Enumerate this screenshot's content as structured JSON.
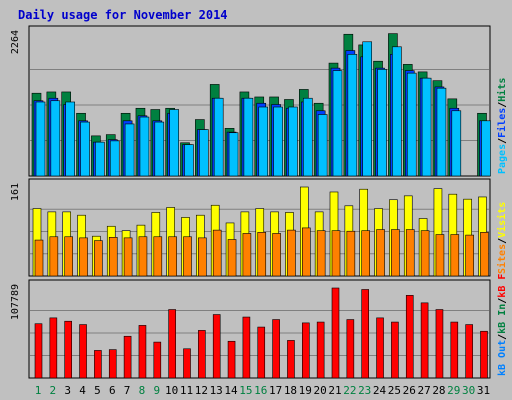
{
  "chart_data": {
    "type": "bar",
    "title": "Daily usage for November 2014",
    "x": [
      "1",
      "2",
      "3",
      "4",
      "5",
      "6",
      "7",
      "8",
      "9",
      "10",
      "11",
      "12",
      "13",
      "14",
      "15",
      "16",
      "17",
      "18",
      "19",
      "20",
      "21",
      "22",
      "23",
      "24",
      "25",
      "26",
      "27",
      "28",
      "29",
      "30",
      "31"
    ],
    "weekend_days": [
      "1",
      "2",
      "8",
      "9",
      "15",
      "16",
      "22",
      "23",
      "29",
      "30"
    ],
    "colors": {
      "background": "#c0c0c0",
      "title": "#0000cc",
      "hits": "#008040",
      "files": "#0040ff",
      "pages": "#00c0ff",
      "visits": "#ffff00",
      "sites": "#ff8000",
      "kb_in": "#008040",
      "kb_out": "#0080ff",
      "kb_f": "#ff0000",
      "weekday_label": "#000000",
      "weekend_label": "#008040"
    },
    "panels": [
      {
        "id": "hits-files-pages",
        "max_label": "2264",
        "max": 2264,
        "legend": [
          {
            "text": "Hits",
            "color": "#008040"
          },
          {
            "text": "/",
            "color": "#000000"
          },
          {
            "text": "Files",
            "color": "#0040ff"
          },
          {
            "text": "/",
            "color": "#000000"
          },
          {
            "text": "Pages",
            "color": "#00c0ff"
          }
        ],
        "series": [
          {
            "name": "Hits",
            "color": "#008040",
            "values": [
              1320,
              1340,
              1340,
              1000,
              640,
              660,
              1000,
              1080,
              1060,
              1080,
              530,
              900,
              1460,
              760,
              1340,
              1260,
              1260,
              1220,
              1380,
              1160,
              1800,
              2260,
              2090,
              1830,
              2270,
              1780,
              1660,
              1520,
              1230,
              0,
              1000
            ]
          },
          {
            "name": "Files",
            "color": "#0040ff",
            "values": [
              1200,
              1240,
              1140,
              880,
              540,
              580,
              880,
              960,
              880,
              1000,
              500,
              740,
              1240,
              700,
              1240,
              1160,
              1140,
              1080,
              1180,
              1040,
              1720,
              2000,
              1900,
              1720,
              1940,
              1680,
              1560,
              1420,
              1080,
              0,
              880
            ]
          },
          {
            "name": "Pages",
            "color": "#00c0ff",
            "values": [
              1180,
              1200,
              1180,
              860,
              540,
              560,
              830,
              940,
              860,
              1060,
              500,
              740,
              1240,
              690,
              1240,
              1100,
              1100,
              1100,
              1240,
              980,
              1680,
              1940,
              2140,
              1700,
              2060,
              1640,
              1560,
              1400,
              1040,
              0,
              880
            ]
          }
        ]
      },
      {
        "id": "visits-sites",
        "max_label": "161",
        "max": 161,
        "legend": [
          {
            "text": "Visits",
            "color": "#ffff00"
          },
          {
            "text": "/",
            "color": "#000000"
          },
          {
            "text": "Sites",
            "color": "#ff8000"
          }
        ],
        "series": [
          {
            "name": "Visits",
            "color": "#ffff00",
            "values": [
              122,
              116,
              116,
              110,
              72,
              90,
              82,
              92,
              115,
              124,
              106,
              110,
              128,
              96,
              116,
              122,
              116,
              115,
              161,
              116,
              152,
              127,
              157,
              122,
              138,
              145,
              104,
              158,
              148,
              139,
              143
            ]
          },
          {
            "name": "Sites",
            "color": "#ff8000",
            "values": [
              65,
              71,
              71,
              69,
              64,
              70,
              69,
              71,
              71,
              71,
              71,
              69,
              83,
              66,
              77,
              79,
              77,
              83,
              87,
              82,
              82,
              81,
              82,
              84,
              84,
              84,
              82,
              75,
              75,
              74,
              79
            ]
          }
        ]
      },
      {
        "id": "kbf-kbin-kbout",
        "max_label": "107789",
        "max": 107789,
        "legend": [
          {
            "text": "kB F",
            "color": "#ff0000"
          },
          {
            "text": "/",
            "color": "#000000"
          },
          {
            "text": "kB In",
            "color": "#008040"
          },
          {
            "text": "/",
            "color": "#000000"
          },
          {
            "text": "kB Out",
            "color": "#0080ff"
          }
        ],
        "series": [
          {
            "name": "kB F",
            "color": "#ff0000",
            "values": [
              65000,
              72000,
              68000,
              64000,
              33000,
              34000,
              50000,
              63000,
              43000,
              82000,
              35000,
              57000,
              76000,
              44000,
              73000,
              61000,
              70000,
              45000,
              66000,
              67000,
              107789,
              70000,
              106000,
              72000,
              67000,
              99000,
              90000,
              82000,
              67000,
              64000,
              56000
            ]
          }
        ]
      }
    ]
  }
}
